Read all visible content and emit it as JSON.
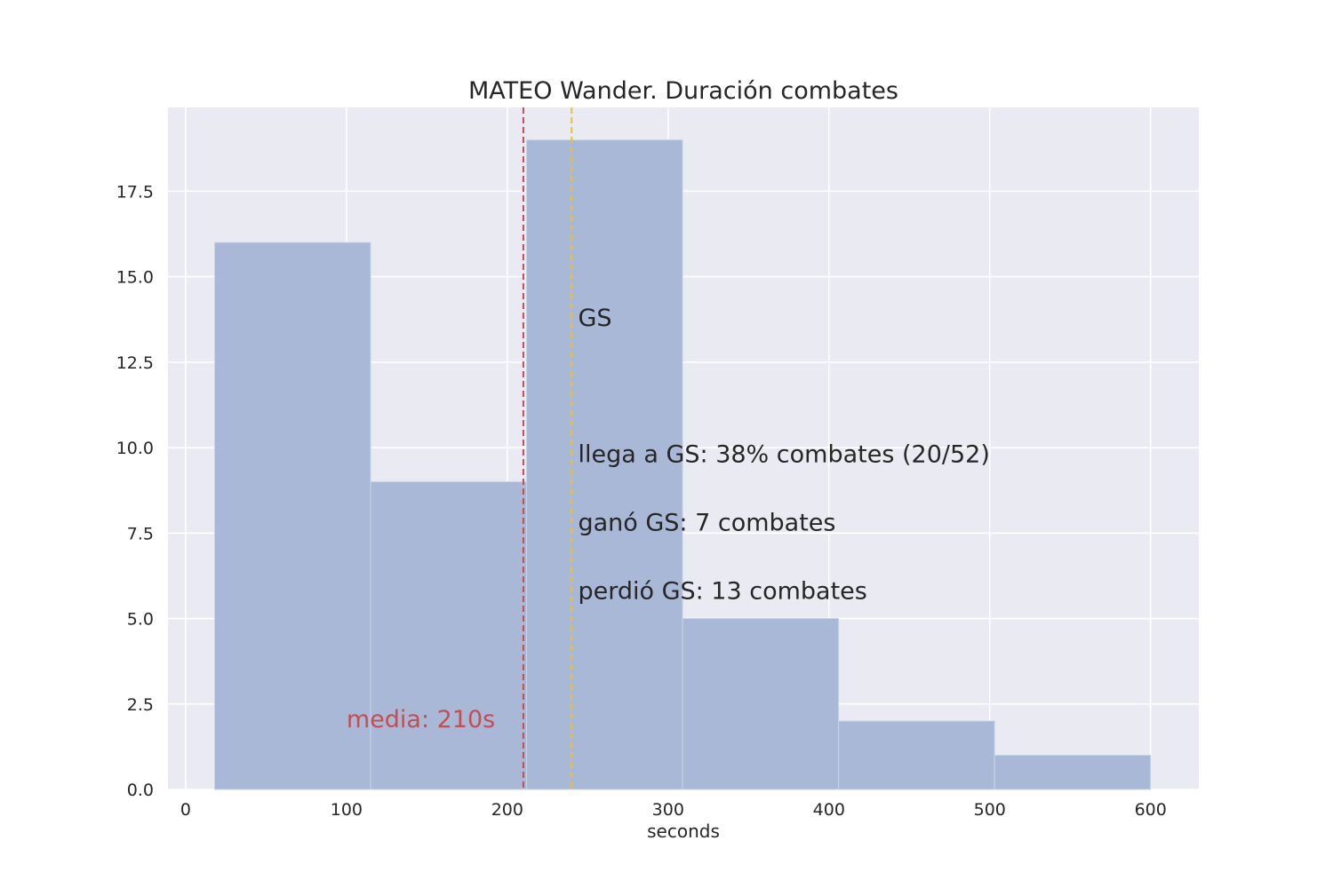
{
  "chart_data": {
    "type": "bar",
    "title": "MATEO Wander. Duración combates",
    "xlabel": "seconds",
    "ylabel": "",
    "xlim": [
      -11,
      630
    ],
    "ylim": [
      0,
      19.95
    ],
    "xticks": [
      0,
      100,
      200,
      300,
      400,
      500,
      600
    ],
    "yticks": [
      0,
      2.5,
      5,
      7.5,
      10,
      12.5,
      15,
      17.5
    ],
    "ytick_labels": [
      "0.0",
      "2.5",
      "5.0",
      "7.5",
      "10.0",
      "12.5",
      "15.0",
      "17.5"
    ],
    "grid": true,
    "bins": [
      {
        "start": 18,
        "end": 115,
        "count": 16
      },
      {
        "start": 115,
        "end": 212,
        "count": 9
      },
      {
        "start": 212,
        "end": 309,
        "count": 19
      },
      {
        "start": 309,
        "end": 406,
        "count": 5
      },
      {
        "start": 406,
        "end": 503,
        "count": 2
      },
      {
        "start": 503,
        "end": 600,
        "count": 1
      }
    ],
    "bar_color": "#a8b8d6",
    "background_color": "#eaeaf2",
    "mean_line": {
      "x": 210,
      "label": "media: 210s",
      "color": "#c44e52"
    },
    "gs_line": {
      "x": 240,
      "label": "GS",
      "color": "#ebc034"
    },
    "annotations": [
      {
        "x": 244,
        "y": 9.8,
        "text": "llega a GS: 38% combates (20/52)"
      },
      {
        "x": 244,
        "y": 7.8,
        "text": "ganó GS: 7 combates"
      },
      {
        "x": 244,
        "y": 5.8,
        "text": "perdió GS: 13 combates"
      }
    ]
  }
}
